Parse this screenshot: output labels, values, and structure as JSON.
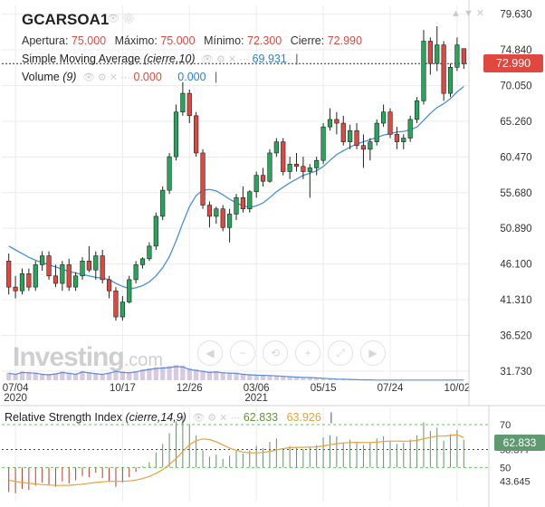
{
  "title": "GCARSOA1",
  "ohlc": {
    "open_label": "Apertura:",
    "open": "75.000",
    "high_label": "Máximo:",
    "high": "75.000",
    "low_label": "Mínimo:",
    "low": "72.300",
    "close_label": "Cierre:",
    "close": "72.990"
  },
  "sma": {
    "label": "Simple Moving Average",
    "params": "(cierre,10)",
    "value": "69.931"
  },
  "volume": {
    "label": "Volume",
    "params": "(9)",
    "value1": "0.000",
    "value2": "0.000"
  },
  "rsi": {
    "label": "Relative Strength Index",
    "params": "(cierre,14,9)",
    "value1": "62.833",
    "value2": "63.926"
  },
  "last_price": "72.990",
  "rsi_last": "62.833",
  "watermark": {
    "brand": "Investing",
    "suffix": ".com"
  },
  "colors": {
    "up": "#26a65b",
    "down": "#e0483f",
    "sma": "#4a90d9",
    "rsi_signal": "#e8a13c",
    "rsi_bar_down": "#c0392b",
    "rsi_bar_up": "#6a8f6a",
    "volume": "#c7b2dc"
  },
  "chart_data": {
    "type": "candlestick",
    "price_axis_ticks": [
      "79.630",
      "74.840",
      "70.050",
      "65.260",
      "60.470",
      "55.680",
      "50.890",
      "46.100",
      "41.310",
      "36.520",
      "31.730"
    ],
    "ylim": [
      30.5,
      80.8
    ],
    "x_ticks": [
      {
        "label": "07/04",
        "sub": "2020",
        "i": 1
      },
      {
        "label": "10/17",
        "sub": "",
        "i": 17
      },
      {
        "label": "12/26",
        "sub": "",
        "i": 27
      },
      {
        "label": "03/06",
        "sub": "2021",
        "i": 37
      },
      {
        "label": "05/15",
        "sub": "",
        "i": 47
      },
      {
        "label": "07/24",
        "sub": "",
        "i": 57
      },
      {
        "label": "10/02",
        "sub": "",
        "i": 67
      }
    ],
    "candles": [
      {
        "o": 46.5,
        "h": 47.5,
        "l": 42.0,
        "c": 43.0
      },
      {
        "o": 43.0,
        "h": 44.5,
        "l": 41.5,
        "c": 42.5
      },
      {
        "o": 42.5,
        "h": 45.5,
        "l": 42.0,
        "c": 44.8
      },
      {
        "o": 44.8,
        "h": 45.5,
        "l": 42.5,
        "c": 43.0
      },
      {
        "o": 43.0,
        "h": 46.5,
        "l": 42.5,
        "c": 46.0
      },
      {
        "o": 46.0,
        "h": 47.8,
        "l": 45.2,
        "c": 47.2
      },
      {
        "o": 47.2,
        "h": 47.8,
        "l": 44.0,
        "c": 44.5
      },
      {
        "o": 44.5,
        "h": 46.0,
        "l": 43.0,
        "c": 43.5
      },
      {
        "o": 43.5,
        "h": 46.5,
        "l": 42.5,
        "c": 46.0
      },
      {
        "o": 46.0,
        "h": 46.8,
        "l": 42.5,
        "c": 43.0
      },
      {
        "o": 43.0,
        "h": 45.0,
        "l": 42.5,
        "c": 44.5
      },
      {
        "o": 44.5,
        "h": 47.0,
        "l": 44.0,
        "c": 46.5
      },
      {
        "o": 46.5,
        "h": 48.5,
        "l": 45.0,
        "c": 45.3
      },
      {
        "o": 45.3,
        "h": 47.8,
        "l": 44.0,
        "c": 47.2
      },
      {
        "o": 47.2,
        "h": 48.0,
        "l": 43.5,
        "c": 44.0
      },
      {
        "o": 44.0,
        "h": 44.5,
        "l": 41.5,
        "c": 42.5
      },
      {
        "o": 42.5,
        "h": 43.0,
        "l": 38.5,
        "c": 39.0
      },
      {
        "o": 39.0,
        "h": 41.8,
        "l": 38.5,
        "c": 41.0
      },
      {
        "o": 41.0,
        "h": 44.5,
        "l": 40.8,
        "c": 44.0
      },
      {
        "o": 44.0,
        "h": 46.5,
        "l": 43.5,
        "c": 46.0
      },
      {
        "o": 46.0,
        "h": 47.0,
        "l": 45.5,
        "c": 46.8
      },
      {
        "o": 46.8,
        "h": 49.0,
        "l": 46.5,
        "c": 48.5
      },
      {
        "o": 48.5,
        "h": 53.0,
        "l": 48.0,
        "c": 52.5
      },
      {
        "o": 52.5,
        "h": 56.5,
        "l": 52.0,
        "c": 56.0
      },
      {
        "o": 56.0,
        "h": 61.0,
        "l": 55.5,
        "c": 60.5
      },
      {
        "o": 60.5,
        "h": 67.5,
        "l": 60.0,
        "c": 66.5
      },
      {
        "o": 66.5,
        "h": 70.5,
        "l": 66.0,
        "c": 69.0
      },
      {
        "o": 69.0,
        "h": 69.5,
        "l": 65.0,
        "c": 66.0
      },
      {
        "o": 66.0,
        "h": 66.5,
        "l": 60.5,
        "c": 61.0
      },
      {
        "o": 61.0,
        "h": 61.5,
        "l": 53.5,
        "c": 54.0
      },
      {
        "o": 54.0,
        "h": 54.5,
        "l": 51.0,
        "c": 52.5
      },
      {
        "o": 52.5,
        "h": 53.8,
        "l": 51.5,
        "c": 53.5
      },
      {
        "o": 53.5,
        "h": 54.0,
        "l": 50.5,
        "c": 51.0
      },
      {
        "o": 51.0,
        "h": 53.5,
        "l": 49.0,
        "c": 52.8
      },
      {
        "o": 52.8,
        "h": 55.5,
        "l": 52.0,
        "c": 55.0
      },
      {
        "o": 55.0,
        "h": 56.5,
        "l": 53.0,
        "c": 53.5
      },
      {
        "o": 53.5,
        "h": 56.0,
        "l": 53.0,
        "c": 55.8
      },
      {
        "o": 55.8,
        "h": 58.5,
        "l": 55.0,
        "c": 58.0
      },
      {
        "o": 58.0,
        "h": 59.0,
        "l": 56.5,
        "c": 57.2
      },
      {
        "o": 57.2,
        "h": 61.5,
        "l": 57.0,
        "c": 61.0
      },
      {
        "o": 61.0,
        "h": 63.0,
        "l": 60.5,
        "c": 62.5
      },
      {
        "o": 62.5,
        "h": 63.0,
        "l": 58.0,
        "c": 58.5
      },
      {
        "o": 58.5,
        "h": 60.5,
        "l": 57.5,
        "c": 59.5
      },
      {
        "o": 59.5,
        "h": 61.0,
        "l": 58.5,
        "c": 59.2
      },
      {
        "o": 59.2,
        "h": 60.5,
        "l": 57.5,
        "c": 58.5
      },
      {
        "o": 58.5,
        "h": 59.5,
        "l": 55.0,
        "c": 59.0
      },
      {
        "o": 59.0,
        "h": 60.5,
        "l": 58.0,
        "c": 60.0
      },
      {
        "o": 60.0,
        "h": 65.0,
        "l": 59.5,
        "c": 64.5
      },
      {
        "o": 64.5,
        "h": 67.0,
        "l": 64.0,
        "c": 65.5
      },
      {
        "o": 65.5,
        "h": 66.5,
        "l": 63.5,
        "c": 65.0
      },
      {
        "o": 65.0,
        "h": 66.0,
        "l": 62.0,
        "c": 62.5
      },
      {
        "o": 62.5,
        "h": 64.8,
        "l": 61.5,
        "c": 64.0
      },
      {
        "o": 64.0,
        "h": 65.0,
        "l": 61.5,
        "c": 62.0
      },
      {
        "o": 62.0,
        "h": 63.5,
        "l": 59.0,
        "c": 61.5
      },
      {
        "o": 61.5,
        "h": 63.0,
        "l": 60.0,
        "c": 62.5
      },
      {
        "o": 62.5,
        "h": 65.5,
        "l": 62.0,
        "c": 65.0
      },
      {
        "o": 65.0,
        "h": 67.5,
        "l": 64.5,
        "c": 66.5
      },
      {
        "o": 66.5,
        "h": 67.0,
        "l": 63.0,
        "c": 63.5
      },
      {
        "o": 63.5,
        "h": 64.5,
        "l": 61.5,
        "c": 62.5
      },
      {
        "o": 62.5,
        "h": 63.5,
        "l": 61.5,
        "c": 63.0
      },
      {
        "o": 63.0,
        "h": 66.0,
        "l": 62.5,
        "c": 65.5
      },
      {
        "o": 65.5,
        "h": 68.5,
        "l": 65.0,
        "c": 68.0
      },
      {
        "o": 68.0,
        "h": 77.5,
        "l": 67.5,
        "c": 76.0
      },
      {
        "o": 76.0,
        "h": 76.5,
        "l": 71.5,
        "c": 73.0
      },
      {
        "o": 73.0,
        "h": 78.0,
        "l": 72.0,
        "c": 75.5
      },
      {
        "o": 75.5,
        "h": 76.0,
        "l": 68.0,
        "c": 69.0
      },
      {
        "o": 69.0,
        "h": 73.0,
        "l": 68.5,
        "c": 72.5
      },
      {
        "o": 72.5,
        "h": 76.5,
        "l": 72.0,
        "c": 75.5
      },
      {
        "o": 75.0,
        "h": 75.0,
        "l": 72.3,
        "c": 72.99
      }
    ],
    "sma": [
      48.5,
      48.0,
      47.5,
      47.0,
      46.6,
      46.3,
      46.0,
      45.7,
      45.4,
      45.1,
      44.9,
      44.7,
      44.5,
      44.3,
      44.2,
      44.0,
      43.5,
      43.1,
      42.8,
      42.9,
      43.2,
      43.7,
      44.5,
      45.6,
      47.1,
      49.2,
      51.6,
      53.8,
      55.3,
      56.0,
      56.1,
      55.9,
      55.4,
      54.8,
      54.3,
      53.9,
      53.7,
      53.9,
      54.3,
      55.0,
      55.8,
      56.4,
      57.0,
      57.5,
      58.0,
      58.3,
      58.6,
      59.2,
      60.0,
      60.8,
      61.3,
      61.8,
      62.2,
      62.5,
      62.8,
      63.1,
      63.4,
      63.6,
      63.8,
      63.9,
      64.1,
      64.5,
      65.4,
      66.3,
      67.1,
      67.6,
      68.3,
      69.2,
      69.93
    ],
    "volume_range": [
      0,
      1
    ],
    "volume": [
      0.35,
      0.3,
      0.4,
      0.38,
      0.36,
      0.3,
      0.28,
      0.32,
      0.4,
      0.35,
      0.3,
      0.42,
      0.38,
      0.33,
      0.3,
      0.36,
      0.45,
      0.4,
      0.38,
      0.42,
      0.5,
      0.55,
      0.6,
      0.62,
      0.65,
      0.7,
      0.68,
      0.55,
      0.5,
      0.45,
      0.4,
      0.42,
      0.38,
      0.36,
      0.35,
      0.3,
      0.28,
      0.26,
      0.25,
      0.24,
      0.22,
      0.2,
      0.18,
      0.16,
      0.15,
      0.14,
      0.12,
      0.1,
      0.08,
      0.06,
      0.05,
      0.04,
      0.03,
      0.02,
      0.02,
      0.01,
      0.01,
      0.01,
      0.01,
      0.01,
      0.01,
      0.01,
      0.01,
      0.01,
      0.01,
      0.01,
      0.01,
      0.01,
      0.01
    ],
    "rsi_axis_ticks": [
      "70",
      "58.377",
      "50",
      "43.645"
    ],
    "rsi_ylim": [
      40,
      78
    ],
    "rsi": [
      38.5,
      38.0,
      40.0,
      39.5,
      41.5,
      43.0,
      42.0,
      41.0,
      43.5,
      42.5,
      44.0,
      46.0,
      45.5,
      47.5,
      45.0,
      43.5,
      41.0,
      43.0,
      45.5,
      48.0,
      50.5,
      52.5,
      57.0,
      61.0,
      66.0,
      71.5,
      74.0,
      70.0,
      65.0,
      58.0,
      55.0,
      56.0,
      54.0,
      55.5,
      58.0,
      56.5,
      58.0,
      60.0,
      59.0,
      62.0,
      63.5,
      59.0,
      60.0,
      59.5,
      58.5,
      59.5,
      60.5,
      64.0,
      65.0,
      64.5,
      61.5,
      63.0,
      61.5,
      60.5,
      61.5,
      63.5,
      64.5,
      62.0,
      61.0,
      61.5,
      63.0,
      65.0,
      71.0,
      67.0,
      68.5,
      62.5,
      65.5,
      67.5,
      62.833
    ],
    "rsi_signal": [
      44.0,
      43.5,
      43.0,
      42.6,
      42.3,
      42.0,
      41.8,
      41.6,
      41.6,
      41.7,
      41.9,
      42.2,
      42.6,
      43.0,
      43.3,
      43.5,
      43.5,
      43.5,
      43.7,
      44.1,
      44.8,
      45.8,
      47.2,
      49.0,
      51.3,
      54.2,
      57.5,
      60.5,
      62.5,
      63.3,
      63.0,
      62.0,
      60.5,
      59.0,
      58.0,
      57.2,
      56.8,
      56.8,
      57.0,
      57.5,
      58.2,
      58.8,
      59.2,
      59.4,
      59.4,
      59.5,
      59.6,
      60.0,
      60.6,
      61.1,
      61.4,
      61.6,
      61.7,
      61.6,
      61.6,
      61.8,
      62.1,
      62.3,
      62.3,
      62.2,
      62.3,
      62.6,
      63.4,
      64.0,
      64.6,
      64.6,
      64.9,
      65.3,
      63.926
    ]
  }
}
